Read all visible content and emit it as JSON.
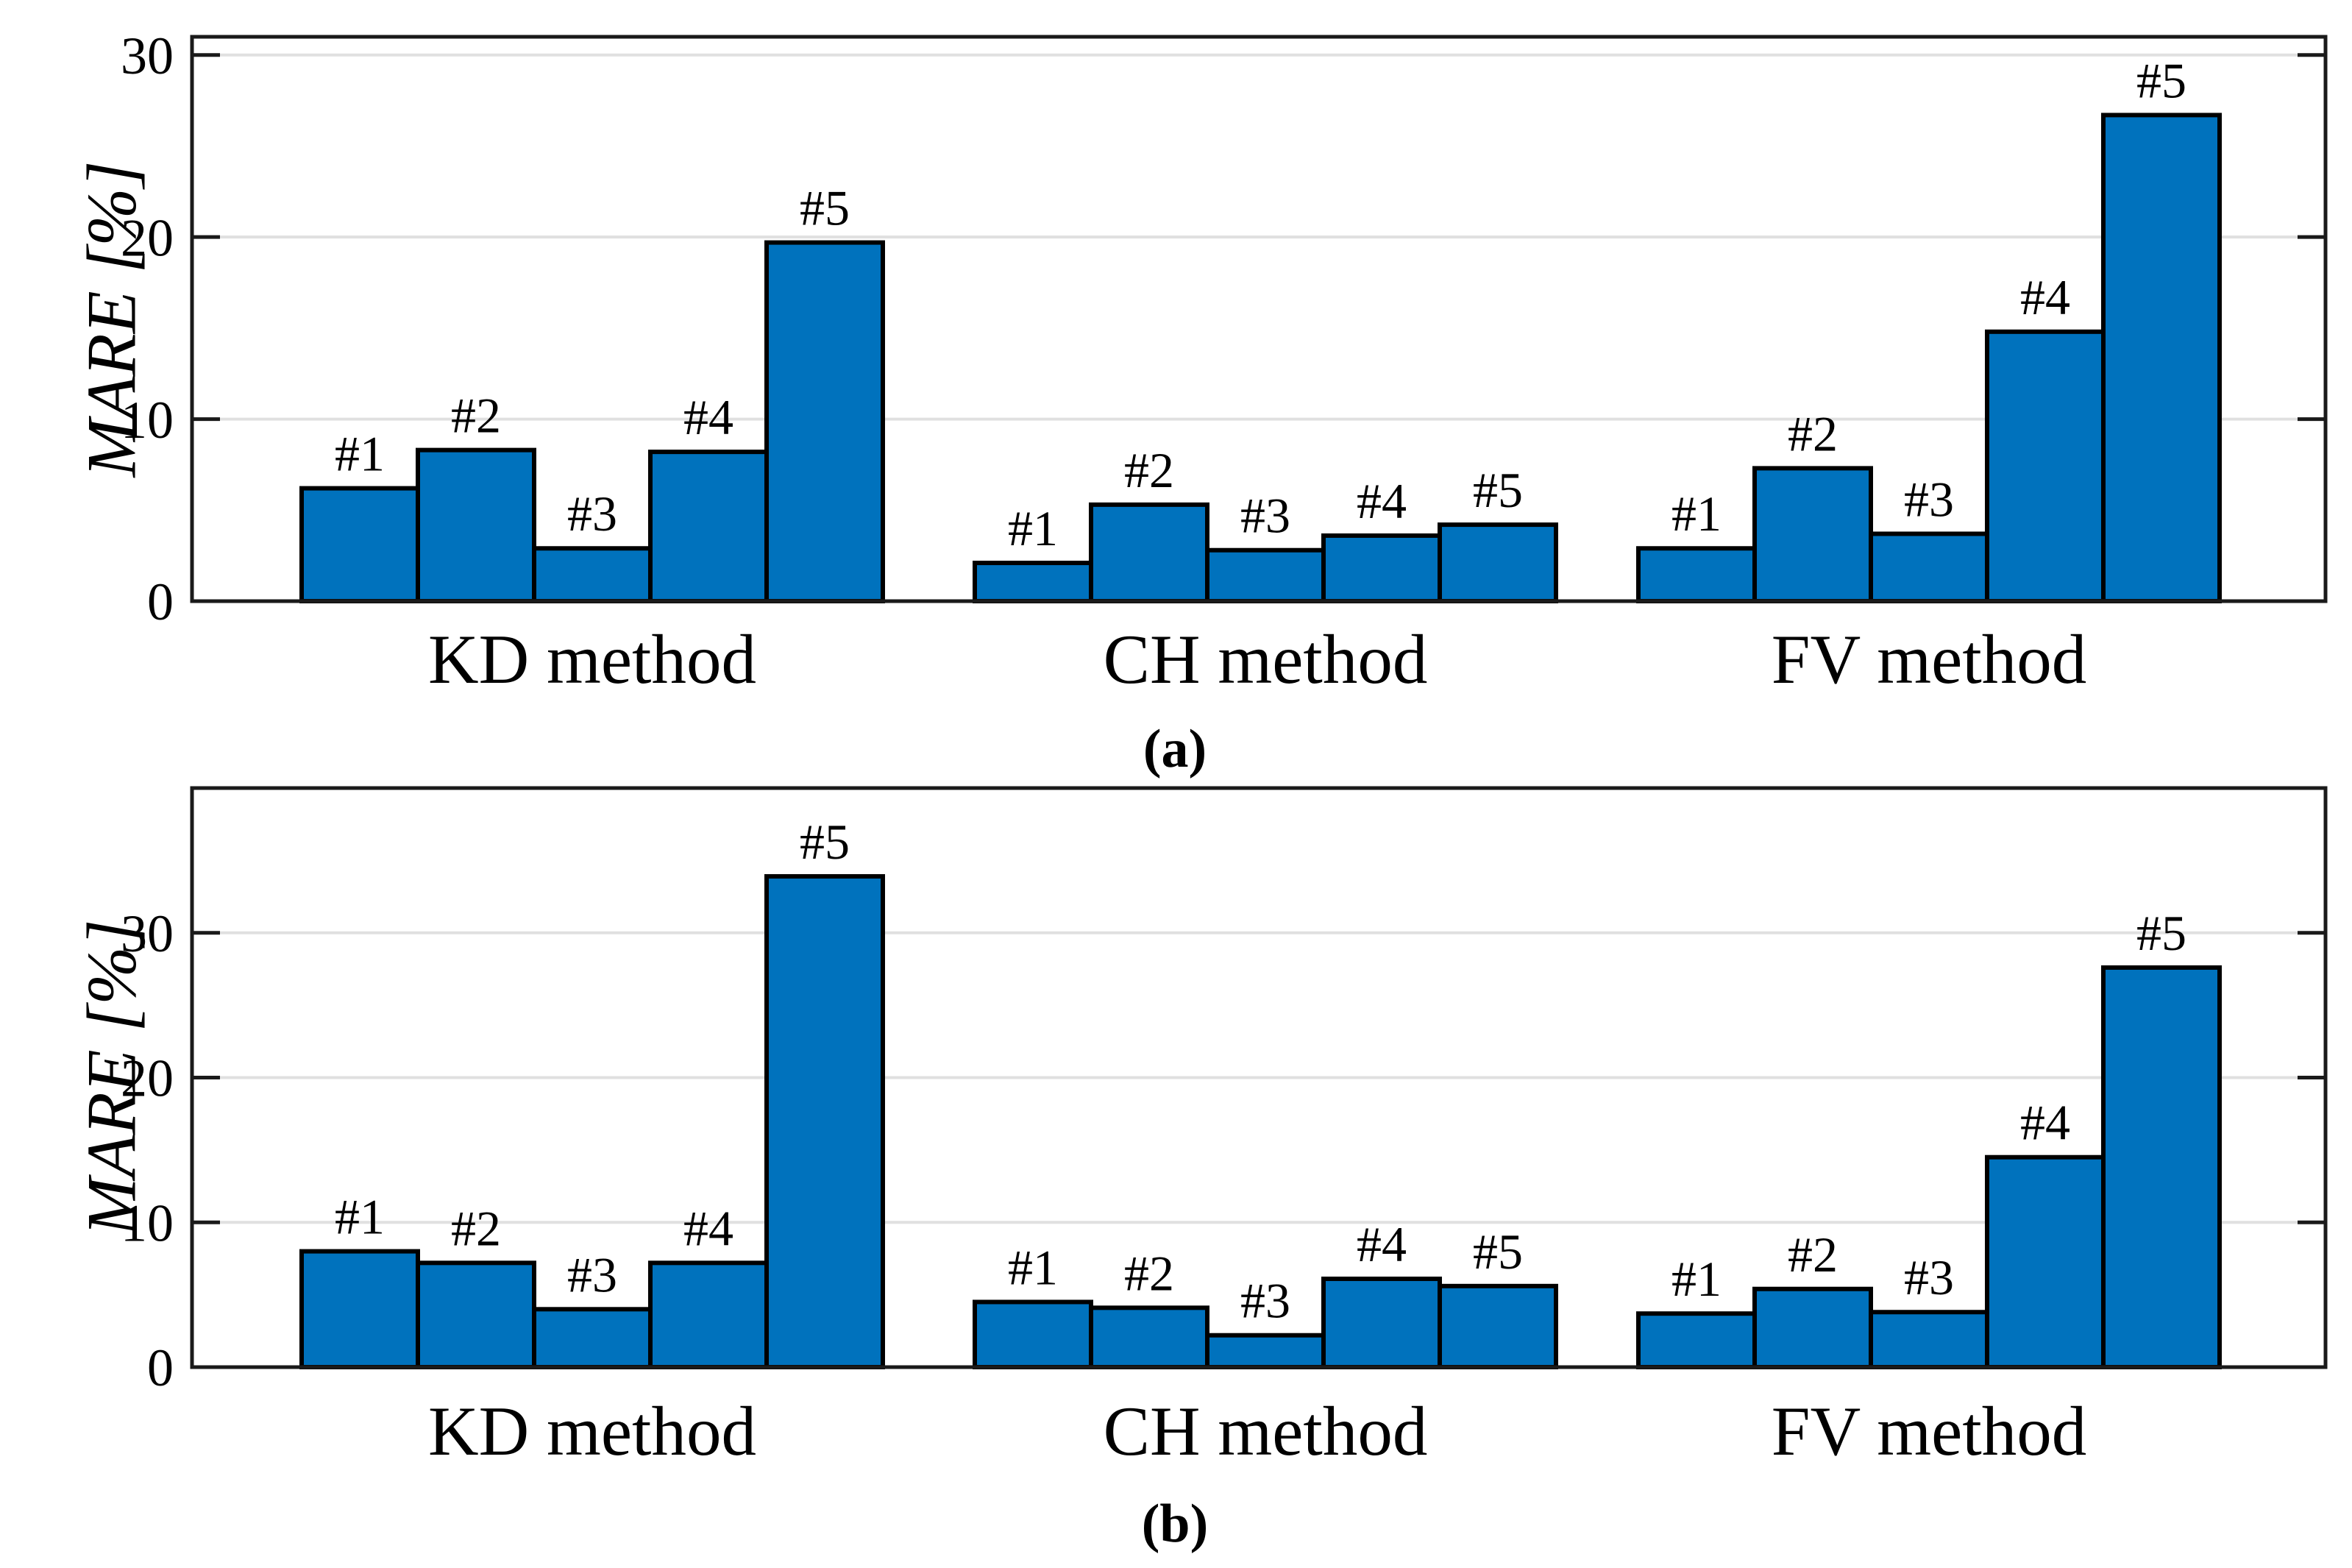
{
  "figure": {
    "description": "Two vertically stacked grouped bar charts comparing MARE of KD, CH and FV methods for cases #1-#5",
    "background_color": "#ffffff"
  },
  "chart_data": [
    {
      "type": "bar",
      "panel_label": "(a)",
      "ylabel": "MARE [%]",
      "xlabel": "",
      "yticks": [
        0,
        10,
        20,
        30
      ],
      "ylim": [
        0,
        31
      ],
      "grid": true,
      "legend_position": "none",
      "categories": [
        "KD method",
        "CH method",
        "FV method"
      ],
      "bar_labels": [
        "#1",
        "#2",
        "#3",
        "#4",
        "#5"
      ],
      "series": [
        {
          "name": "KD method",
          "values": [
            6.2,
            8.3,
            2.9,
            8.2,
            19.7
          ]
        },
        {
          "name": "CH method",
          "values": [
            2.1,
            5.3,
            2.8,
            3.6,
            4.2
          ]
        },
        {
          "name": "FV method",
          "values": [
            2.9,
            7.3,
            3.7,
            14.8,
            26.7
          ]
        }
      ],
      "colors": {
        "bar_fill": "#0072BD",
        "bar_edge": "#000000",
        "axis": "#1a1a1a",
        "grid": "#e0e0e0",
        "text": "#000000"
      }
    },
    {
      "type": "bar",
      "panel_label": "(b)",
      "ylabel": "MARE [%]",
      "xlabel": "",
      "yticks": [
        0,
        10,
        20,
        30
      ],
      "ylim": [
        0,
        40
      ],
      "grid": true,
      "legend_position": "none",
      "categories": [
        "KD method",
        "CH method",
        "FV method"
      ],
      "bar_labels": [
        "#1",
        "#2",
        "#3",
        "#4",
        "#5"
      ],
      "series": [
        {
          "name": "KD method",
          "values": [
            8.0,
            7.2,
            4.0,
            7.2,
            33.9
          ]
        },
        {
          "name": "CH method",
          "values": [
            4.5,
            4.1,
            2.2,
            6.1,
            5.6
          ]
        },
        {
          "name": "FV method",
          "values": [
            3.7,
            5.4,
            3.8,
            14.5,
            27.6
          ]
        }
      ],
      "colors": {
        "bar_fill": "#0072BD",
        "bar_edge": "#000000",
        "axis": "#1a1a1a",
        "grid": "#e0e0e0",
        "text": "#000000"
      }
    }
  ]
}
